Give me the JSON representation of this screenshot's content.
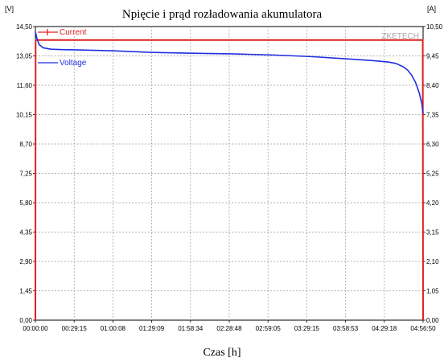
{
  "chart_data": {
    "type": "line",
    "title": "Npięcie i prąd rozładowania akumulatora",
    "xlabel": "Czas [h]",
    "ylabel_left": "[V]",
    "ylabel_right": "[A]",
    "watermark": "ZKETECH",
    "x_ticks": [
      "00:00:00",
      "00:29:15",
      "01:00:08",
      "01:29:09",
      "01:58:34",
      "02:28:48",
      "02:59:05",
      "03:29:15",
      "03:58:53",
      "04:29:18",
      "04:56:50"
    ],
    "y_left_ticks": [
      "0,00",
      "1,45",
      "2,90",
      "4,35",
      "5,80",
      "7,25",
      "8,70",
      "10,15",
      "11,60",
      "13,05",
      "14,50"
    ],
    "y_right_ticks": [
      "0,00",
      "1,05",
      "2,10",
      "3,15",
      "4,20",
      "5,25",
      "6,30",
      "7,35",
      "8,40",
      "9,45",
      "10,50"
    ],
    "ylim_left": [
      0,
      14.5
    ],
    "ylim_right": [
      0,
      10.5
    ],
    "xlim_hours": [
      0,
      4.947
    ],
    "grid": true,
    "legend_position": "top-left",
    "series": [
      {
        "name": "Current",
        "axis": "right",
        "color": "#e02020",
        "x": [
          0,
          0.003,
          4.943,
          4.947
        ],
        "y": [
          0,
          10.02,
          10.02,
          0
        ]
      },
      {
        "name": "Voltage",
        "axis": "left",
        "color": "#1f2fe0",
        "x": [
          0,
          0.02,
          0.05,
          0.1,
          0.2,
          0.35,
          0.5,
          1.0,
          1.5,
          2.0,
          2.5,
          3.0,
          3.5,
          4.0,
          4.3,
          4.5,
          4.6,
          4.7,
          4.75,
          4.8,
          4.85,
          4.9,
          4.93,
          4.947
        ],
        "y": [
          14.25,
          13.9,
          13.6,
          13.45,
          13.38,
          13.36,
          13.35,
          13.3,
          13.22,
          13.18,
          13.15,
          13.1,
          13.02,
          12.9,
          12.82,
          12.75,
          12.68,
          12.5,
          12.35,
          12.1,
          11.75,
          11.2,
          10.7,
          10.2
        ]
      }
    ]
  }
}
